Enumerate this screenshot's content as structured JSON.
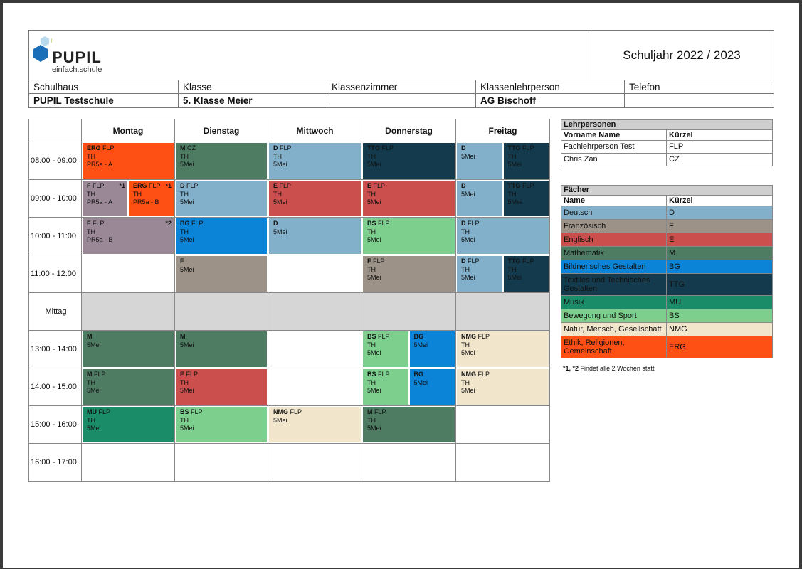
{
  "logo": {
    "word": "PUPIL",
    "tagline": "einfach.schule"
  },
  "school_year": "Schuljahr 2022 / 2023",
  "info": {
    "headers": [
      "Schulhaus",
      "Klasse",
      "Klassenzimmer",
      "Klassenlehrperson",
      "Telefon"
    ],
    "values": [
      "PUPIL Testschule",
      "5. Klasse Meier",
      "",
      "AG Bischoff",
      ""
    ]
  },
  "timetable": {
    "days": [
      "Montag",
      "Dienstag",
      "Mittwoch",
      "Donnerstag",
      "Freitag"
    ],
    "times": [
      "08:00 - 09:00",
      "09:00 - 10:00",
      "10:00 - 11:00",
      "11:00 - 12:00",
      "Mittag",
      "13:00 - 14:00",
      "14:00 - 15:00",
      "15:00 - 16:00",
      "16:00 - 17:00"
    ],
    "lessons": [
      {
        "row": 0,
        "day": 0,
        "part": [
          0,
          1
        ],
        "subj": "ERG",
        "teacher": "FLP",
        "l2": "TH",
        "l3": "PR5a - A",
        "color": "#fe4f14",
        "white": false,
        "note": ""
      },
      {
        "row": 0,
        "day": 1,
        "part": [
          0,
          1
        ],
        "subj": "M",
        "teacher": "CZ",
        "l2": "TH",
        "l3": "5Mei",
        "color": "#4d7c63",
        "white": false,
        "note": ""
      },
      {
        "row": 0,
        "day": 2,
        "part": [
          0,
          1
        ],
        "subj": "D",
        "teacher": "FLP",
        "l2": "TH",
        "l3": "5Mei",
        "color": "#82afc9",
        "white": false,
        "note": ""
      },
      {
        "row": 0,
        "day": 3,
        "part": [
          0,
          1
        ],
        "subj": "TTG",
        "teacher": "FLP",
        "l2": "TH",
        "l3": "5Mei",
        "color": "#133b4d",
        "white": false,
        "note": ""
      },
      {
        "row": 0,
        "day": 4,
        "part": [
          0,
          0.5
        ],
        "subj": "D",
        "teacher": "",
        "l2": "5Mei",
        "l3": "",
        "color": "#82afc9",
        "white": false,
        "note": ""
      },
      {
        "row": 0,
        "day": 4,
        "part": [
          0.5,
          1
        ],
        "subj": "TTG",
        "teacher": "FLP",
        "l2": "TH",
        "l3": "5Mei",
        "color": "#133b4d",
        "white": false,
        "note": ""
      },
      {
        "row": 1,
        "day": 0,
        "part": [
          0,
          0.5
        ],
        "subj": "F",
        "teacher": "FLP",
        "l2": "TH",
        "l3": "PR5a - A",
        "color": "#9a8896",
        "white": false,
        "note": "*1"
      },
      {
        "row": 1,
        "day": 0,
        "part": [
          0.5,
          1
        ],
        "subj": "ERG",
        "teacher": "FLP",
        "l2": "TH",
        "l3": "PR5a - B",
        "color": "#fe4f14",
        "white": false,
        "note": "*1"
      },
      {
        "row": 1,
        "day": 1,
        "part": [
          0,
          1
        ],
        "subj": "D",
        "teacher": "FLP",
        "l2": "TH",
        "l3": "5Mei",
        "color": "#82afc9",
        "white": false,
        "note": ""
      },
      {
        "row": 1,
        "day": 2,
        "part": [
          0,
          1
        ],
        "subj": "E",
        "teacher": "FLP",
        "l2": "TH",
        "l3": "5Mei",
        "color": "#cb4f4d",
        "white": false,
        "note": ""
      },
      {
        "row": 1,
        "day": 3,
        "part": [
          0,
          1
        ],
        "subj": "E",
        "teacher": "FLP",
        "l2": "TH",
        "l3": "5Mei",
        "color": "#cb4f4d",
        "white": false,
        "note": ""
      },
      {
        "row": 1,
        "day": 4,
        "part": [
          0,
          0.5
        ],
        "subj": "D",
        "teacher": "",
        "l2": "5Mei",
        "l3": "",
        "color": "#82afc9",
        "white": false,
        "note": ""
      },
      {
        "row": 1,
        "day": 4,
        "part": [
          0.5,
          1
        ],
        "subj": "TTG",
        "teacher": "FLP",
        "l2": "TH",
        "l3": "5Mei",
        "color": "#133b4d",
        "white": false,
        "note": ""
      },
      {
        "row": 2,
        "day": 0,
        "part": [
          0,
          1
        ],
        "subj": "F",
        "teacher": "FLP",
        "l2": "TH",
        "l3": "PR5a - B",
        "color": "#9a8896",
        "white": false,
        "note": "*2"
      },
      {
        "row": 2,
        "day": 1,
        "part": [
          0,
          1
        ],
        "subj": "BG",
        "teacher": "FLP",
        "l2": "TH",
        "l3": "5Mei",
        "color": "#0b84d8",
        "white": false,
        "note": ""
      },
      {
        "row": 2,
        "day": 2,
        "part": [
          0,
          1
        ],
        "subj": "D",
        "teacher": "",
        "l2": "5Mei",
        "l3": "",
        "color": "#82afc9",
        "white": false,
        "note": ""
      },
      {
        "row": 2,
        "day": 3,
        "part": [
          0,
          1
        ],
        "subj": "BS",
        "teacher": "FLP",
        "l2": "TH",
        "l3": "5Mei",
        "color": "#7dcf8e",
        "white": false,
        "note": ""
      },
      {
        "row": 2,
        "day": 4,
        "part": [
          0,
          1
        ],
        "subj": "D",
        "teacher": "FLP",
        "l2": "TH",
        "l3": "5Mei",
        "color": "#82afc9",
        "white": false,
        "note": ""
      },
      {
        "row": 3,
        "day": 1,
        "part": [
          0,
          1
        ],
        "subj": "F",
        "teacher": "",
        "l2": "5Mei",
        "l3": "",
        "color": "#9c9287",
        "white": false,
        "note": ""
      },
      {
        "row": 3,
        "day": 3,
        "part": [
          0,
          1
        ],
        "subj": "F",
        "teacher": "FLP",
        "l2": "TH",
        "l3": "5Mei",
        "color": "#9c9287",
        "white": false,
        "note": ""
      },
      {
        "row": 3,
        "day": 4,
        "part": [
          0,
          0.5
        ],
        "subj": "D",
        "teacher": "FLP",
        "l2": "TH",
        "l3": "5Mei",
        "color": "#82afc9",
        "white": false,
        "note": ""
      },
      {
        "row": 3,
        "day": 4,
        "part": [
          0.5,
          1
        ],
        "subj": "TTG",
        "teacher": "FLP",
        "l2": "TH",
        "l3": "5Mei",
        "color": "#133b4d",
        "white": false,
        "note": ""
      },
      {
        "row": 5,
        "day": 0,
        "part": [
          0,
          1
        ],
        "subj": "M",
        "teacher": "",
        "l2": "5Mei",
        "l3": "",
        "color": "#4d7c63",
        "white": false,
        "note": ""
      },
      {
        "row": 5,
        "day": 1,
        "part": [
          0,
          1
        ],
        "subj": "M",
        "teacher": "",
        "l2": "5Mei",
        "l3": "",
        "color": "#4d7c63",
        "white": false,
        "note": ""
      },
      {
        "row": 5,
        "day": 3,
        "part": [
          0,
          0.5
        ],
        "subj": "BS",
        "teacher": "FLP",
        "l2": "TH",
        "l3": "5Mei",
        "color": "#7dcf8e",
        "white": false,
        "note": ""
      },
      {
        "row": 5,
        "day": 3,
        "part": [
          0.5,
          1
        ],
        "subj": "BG",
        "teacher": "",
        "l2": "5Mei",
        "l3": "",
        "color": "#0b84d8",
        "white": false,
        "note": ""
      },
      {
        "row": 5,
        "day": 4,
        "part": [
          0,
          1
        ],
        "subj": "NMG",
        "teacher": "FLP",
        "l2": "TH",
        "l3": "5Mei",
        "color": "#f1e5cc",
        "white": false,
        "note": ""
      },
      {
        "row": 6,
        "day": 0,
        "part": [
          0,
          1
        ],
        "subj": "M",
        "teacher": "FLP",
        "l2": "TH",
        "l3": "5Mei",
        "color": "#4d7c63",
        "white": false,
        "note": ""
      },
      {
        "row": 6,
        "day": 1,
        "part": [
          0,
          1
        ],
        "subj": "E",
        "teacher": "FLP",
        "l2": "TH",
        "l3": "5Mei",
        "color": "#cb4f4d",
        "white": false,
        "note": ""
      },
      {
        "row": 6,
        "day": 3,
        "part": [
          0,
          0.5
        ],
        "subj": "BS",
        "teacher": "FLP",
        "l2": "TH",
        "l3": "5Mei",
        "color": "#7dcf8e",
        "white": false,
        "note": ""
      },
      {
        "row": 6,
        "day": 3,
        "part": [
          0.5,
          1
        ],
        "subj": "BG",
        "teacher": "",
        "l2": "5Mei",
        "l3": "",
        "color": "#0b84d8",
        "white": false,
        "note": ""
      },
      {
        "row": 6,
        "day": 4,
        "part": [
          0,
          1
        ],
        "subj": "NMG",
        "teacher": "FLP",
        "l2": "TH",
        "l3": "5Mei",
        "color": "#f1e5cc",
        "white": false,
        "note": ""
      },
      {
        "row": 7,
        "day": 0,
        "part": [
          0,
          1
        ],
        "subj": "MU",
        "teacher": "FLP",
        "l2": "TH",
        "l3": "5Mei",
        "color": "#1a8c68",
        "white": false,
        "note": ""
      },
      {
        "row": 7,
        "day": 1,
        "part": [
          0,
          1
        ],
        "subj": "BS",
        "teacher": "FLP",
        "l2": "TH",
        "l3": "5Mei",
        "color": "#7dcf8e",
        "white": false,
        "note": ""
      },
      {
        "row": 7,
        "day": 2,
        "part": [
          0,
          1
        ],
        "subj": "NMG",
        "teacher": "FLP",
        "l2": "5Mei",
        "l3": "",
        "color": "#f1e5cc",
        "white": false,
        "note": ""
      },
      {
        "row": 7,
        "day": 3,
        "part": [
          0,
          1
        ],
        "subj": "M",
        "teacher": "FLP",
        "l2": "TH",
        "l3": "5Mei",
        "color": "#4d7c63",
        "white": false,
        "note": ""
      }
    ]
  },
  "teachers": {
    "title": "Lehrpersonen",
    "headers": [
      "Vorname Name",
      "Kürzel"
    ],
    "rows": [
      [
        "Fachlehrperson Test",
        "FLP"
      ],
      [
        "Chris Zan",
        "CZ"
      ]
    ]
  },
  "subjects": {
    "title": "Fächer",
    "headers": [
      "Name",
      "Kürzel"
    ],
    "rows": [
      {
        "name": "Deutsch",
        "code": "D",
        "color": "#82afc9",
        "h": 18
      },
      {
        "name": "Französisch",
        "code": "F",
        "color": "#9c9287",
        "h": 18
      },
      {
        "name": "Englisch",
        "code": "E",
        "color": "#cb4f4d",
        "h": 18
      },
      {
        "name": "Mathematik",
        "code": "M",
        "color": "#4d7c63",
        "h": 18
      },
      {
        "name": "Bildnerisches Gestalten",
        "code": "BG",
        "color": "#0b84d8",
        "h": 18
      },
      {
        "name": "Textiles und Technisches Gestalten",
        "code": "TTG",
        "color": "#133b4d",
        "h": 30
      },
      {
        "name": "Musik",
        "code": "MU",
        "color": "#1a8c68",
        "h": 18
      },
      {
        "name": "Bewegung und Sport",
        "code": "BS",
        "color": "#7dcf8e",
        "h": 18
      },
      {
        "name": "Natur, Mensch, Gesellschaft",
        "code": "NMG",
        "color": "#f1e5cc",
        "h": 18
      },
      {
        "name": "Ethik, Religionen, Gemeinschaft",
        "code": "ERG",
        "color": "#fe4f14",
        "h": 30
      }
    ]
  },
  "footnote": {
    "marks": "*1, *2",
    "text": "Findet alle 2 Wochen statt"
  }
}
